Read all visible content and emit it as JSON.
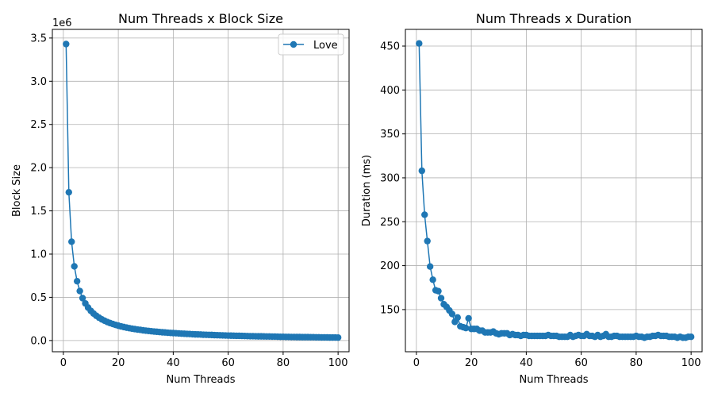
{
  "chart_data": [
    {
      "type": "line",
      "title": "Num Threads x Block Size",
      "xlabel": "Num Threads",
      "ylabel": "Block Size",
      "y_offset_label": "1e6",
      "xlim": [
        -4,
        104
      ],
      "ylim": [
        -0.13,
        3.6
      ],
      "xticks": [
        0,
        20,
        40,
        60,
        80,
        100
      ],
      "xtick_labels": [
        "0",
        "20",
        "40",
        "60",
        "80",
        "100"
      ],
      "yticks": [
        0.0,
        0.5,
        1.0,
        1.5,
        2.0,
        2.5,
        3.0,
        3.5
      ],
      "ytick_labels": [
        "0.0",
        "0.5",
        "1.0",
        "1.5",
        "2.0",
        "2.5",
        "3.0",
        "3.5"
      ],
      "grid": true,
      "legend": {
        "position": "top-right",
        "entries": [
          "Love"
        ]
      },
      "series_color": "#1f77b4",
      "series": [
        {
          "name": "Love",
          "x": [
            1,
            2,
            3,
            4,
            5,
            6,
            7,
            8,
            9,
            10,
            11,
            12,
            13,
            14,
            15,
            16,
            17,
            18,
            19,
            20,
            21,
            22,
            23,
            24,
            25,
            26,
            27,
            28,
            29,
            30,
            31,
            32,
            33,
            34,
            35,
            36,
            37,
            38,
            39,
            40,
            41,
            42,
            43,
            44,
            45,
            46,
            47,
            48,
            49,
            50,
            51,
            52,
            53,
            54,
            55,
            56,
            57,
            58,
            59,
            60,
            61,
            62,
            63,
            64,
            65,
            66,
            67,
            68,
            69,
            70,
            71,
            72,
            73,
            74,
            75,
            76,
            77,
            78,
            79,
            80,
            81,
            82,
            83,
            84,
            85,
            86,
            87,
            88,
            89,
            90,
            91,
            92,
            93,
            94,
            95,
            96,
            97,
            98,
            99,
            100
          ],
          "values": [
            3.43,
            1.715,
            1.143,
            0.858,
            0.686,
            0.572,
            0.49,
            0.429,
            0.381,
            0.343,
            0.312,
            0.286,
            0.264,
            0.245,
            0.229,
            0.214,
            0.202,
            0.191,
            0.181,
            0.172,
            0.163,
            0.156,
            0.149,
            0.143,
            0.137,
            0.132,
            0.127,
            0.123,
            0.118,
            0.114,
            0.111,
            0.107,
            0.104,
            0.101,
            0.098,
            0.095,
            0.093,
            0.09,
            0.088,
            0.086,
            0.084,
            0.082,
            0.08,
            0.078,
            0.076,
            0.075,
            0.073,
            0.071,
            0.07,
            0.069,
            0.067,
            0.066,
            0.065,
            0.064,
            0.062,
            0.061,
            0.06,
            0.059,
            0.058,
            0.057,
            0.056,
            0.055,
            0.054,
            0.054,
            0.053,
            0.052,
            0.051,
            0.05,
            0.05,
            0.049,
            0.048,
            0.048,
            0.047,
            0.046,
            0.046,
            0.045,
            0.045,
            0.044,
            0.043,
            0.043,
            0.042,
            0.042,
            0.041,
            0.041,
            0.04,
            0.04,
            0.039,
            0.039,
            0.039,
            0.038,
            0.038,
            0.037,
            0.037,
            0.036,
            0.036,
            0.036,
            0.035,
            0.035,
            0.035,
            0.034
          ]
        }
      ]
    },
    {
      "type": "line",
      "title": "Num Threads x Duration",
      "xlabel": "Num Threads",
      "ylabel": "Duration (ms)",
      "xlim": [
        -4,
        104
      ],
      "ylim": [
        102,
        469
      ],
      "xticks": [
        0,
        20,
        40,
        60,
        80,
        100
      ],
      "xtick_labels": [
        "0",
        "20",
        "40",
        "60",
        "80",
        "100"
      ],
      "yticks": [
        150,
        200,
        250,
        300,
        350,
        400,
        450
      ],
      "ytick_labels": [
        "150",
        "200",
        "250",
        "300",
        "350",
        "400",
        "450"
      ],
      "grid": true,
      "series_color": "#1f77b4",
      "series": [
        {
          "x": [
            1,
            2,
            3,
            4,
            5,
            6,
            7,
            8,
            9,
            10,
            11,
            12,
            13,
            14,
            15,
            16,
            17,
            18,
            19,
            20,
            21,
            22,
            23,
            24,
            25,
            26,
            27,
            28,
            29,
            30,
            31,
            32,
            33,
            34,
            35,
            36,
            37,
            38,
            39,
            40,
            41,
            42,
            43,
            44,
            45,
            46,
            47,
            48,
            49,
            50,
            51,
            52,
            53,
            54,
            55,
            56,
            57,
            58,
            59,
            60,
            61,
            62,
            63,
            64,
            65,
            66,
            67,
            68,
            69,
            70,
            71,
            72,
            73,
            74,
            75,
            76,
            77,
            78,
            79,
            80,
            81,
            82,
            83,
            84,
            85,
            86,
            87,
            88,
            89,
            90,
            91,
            92,
            93,
            94,
            95,
            96,
            97,
            98,
            99,
            100
          ],
          "values": [
            453,
            308,
            258,
            228,
            199,
            184,
            172,
            171,
            163,
            156,
            153,
            149,
            145,
            136,
            141,
            131,
            130,
            129,
            140,
            128,
            128,
            128,
            126,
            126,
            124,
            124,
            124,
            125,
            123,
            122,
            123,
            123,
            123,
            121,
            122,
            121,
            121,
            120,
            121,
            121,
            120,
            120,
            120,
            120,
            120,
            120,
            120,
            121,
            120,
            120,
            120,
            119,
            119,
            119,
            119,
            121,
            119,
            120,
            121,
            120,
            120,
            122,
            120,
            120,
            119,
            121,
            119,
            120,
            122,
            119,
            119,
            120,
            120,
            119,
            119,
            119,
            119,
            119,
            119,
            120,
            119,
            119,
            118,
            119,
            119,
            120,
            120,
            121,
            120,
            120,
            120,
            119,
            119,
            119,
            118,
            119,
            118,
            118,
            119,
            119
          ]
        }
      ]
    }
  ]
}
